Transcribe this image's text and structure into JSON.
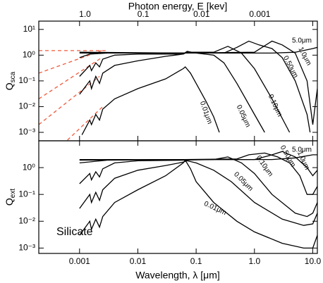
{
  "chart_data": [
    {
      "type": "line",
      "x2label": "Photon energy, E [kev]",
      "ylabel": "Q",
      "ylabel_sub": "sca",
      "xscale": "log",
      "yscale": "log",
      "xlim": [
        0.0002,
        12
      ],
      "ylim": [
        0.00047,
        21
      ],
      "x2lim": [
        6.2,
        0.000103
      ],
      "x2ticks": [
        {
          "value": 1.0,
          "label": "1.0"
        },
        0.1,
        0.01,
        0.001
      ],
      "yticks": [
        {
          "value": 0.001,
          "label": "10⁻³"
        },
        {
          "value": 0.01,
          "label": "10⁻²"
        },
        {
          "value": 0.1,
          "label": "10⁻¹"
        },
        {
          "value": 1,
          "label": "10⁰"
        },
        {
          "value": 10,
          "label": "10¹"
        }
      ],
      "series": [
        {
          "name": "0.01μm",
          "color": "#000000",
          "x": [
            0.0011,
            0.0015,
            0.0016,
            0.0019,
            0.0022,
            0.0025,
            0.004,
            0.01,
            0.03,
            0.06,
            0.065,
            0.08,
            0.1,
            0.15,
            0.2,
            0.25
          ],
          "values": [
            0.0008,
            0.003,
            0.002,
            0.005,
            0.003,
            0.008,
            0.02,
            0.05,
            0.12,
            0.3,
            0.35,
            0.2,
            0.08,
            0.015,
            0.004,
            0.001
          ]
        },
        {
          "name": "0.05μm",
          "color": "#000000",
          "x": [
            0.001,
            0.0015,
            0.0016,
            0.0019,
            0.0022,
            0.0025,
            0.004,
            0.01,
            0.03,
            0.06,
            0.07,
            0.1,
            0.2,
            0.3,
            0.5,
            1,
            1.5
          ],
          "values": [
            0.03,
            0.1,
            0.05,
            0.15,
            0.08,
            0.2,
            0.4,
            0.6,
            0.9,
            1.1,
            1.4,
            1.2,
            1.0,
            0.5,
            0.08,
            0.005,
            0.001
          ]
        },
        {
          "name": "0.10μm",
          "color": "#000000",
          "x": [
            0.001,
            0.0015,
            0.0016,
            0.0019,
            0.0022,
            0.0025,
            0.004,
            0.01,
            0.06,
            0.07,
            0.2,
            0.35,
            0.6,
            1,
            2,
            4
          ],
          "values": [
            0.15,
            0.4,
            0.25,
            0.5,
            0.35,
            0.7,
            1.0,
            1.1,
            1.1,
            1.3,
            1.3,
            2.2,
            1.2,
            0.3,
            0.02,
            0.001
          ]
        },
        {
          "name": "0.50μm",
          "color": "#000000",
          "x": [
            0.001,
            0.0015,
            0.003,
            0.06,
            0.3,
            0.5,
            0.8,
            1.2,
            2,
            3,
            5,
            8,
            9
          ],
          "values": [
            0.8,
            1.1,
            1.2,
            1.2,
            1.2,
            2,
            3.5,
            2.5,
            1.8,
            0.8,
            0.1,
            0.005,
            0.001
          ]
        },
        {
          "name": "1.0μm",
          "color": "#000000",
          "x": [
            0.001,
            0.06,
            1,
            2,
            3,
            5,
            8,
            10,
            12
          ],
          "values": [
            1.2,
            1.2,
            1.3,
            3.5,
            2.5,
            1.2,
            0.1,
            0.002,
            0.05
          ]
        },
        {
          "name": "5.0μm",
          "color": "#000000",
          "x": [
            0.001,
            0.06,
            2,
            5,
            10,
            12
          ],
          "values": [
            1.3,
            1.2,
            1.2,
            1.3,
            1.8,
            2
          ]
        }
      ],
      "dashed_color": "#f05a3c",
      "dashed_lines": [
        {
          "x": [
            0.0002,
            0.0028
          ],
          "values": [
            1.5,
            1.5
          ]
        },
        {
          "x": [
            0.0002,
            0.0024
          ],
          "values": [
            0.2,
            1.5
          ]
        },
        {
          "x": [
            0.0002,
            0.0024
          ],
          "values": [
            0.02,
            0.8
          ]
        },
        {
          "x": [
            0.0002,
            0.0022
          ],
          "values": [
            0.002,
            0.15
          ]
        },
        {
          "x": [
            0.00062,
            0.0025
          ],
          "values": [
            0.0005,
            0.01
          ]
        }
      ]
    },
    {
      "type": "line",
      "xlabel": "Wavelength, λ [μm]",
      "ylabel": "Q",
      "ylabel_sub": "ext",
      "annotation": "Silicate",
      "xscale": "log",
      "yscale": "log",
      "xlim": [
        0.0002,
        12
      ],
      "ylim": [
        0.00063,
        10
      ],
      "xticks": [
        0.001,
        0.01,
        0.1,
        {
          "value": 1.0,
          "label": "1.0"
        },
        {
          "value": 10.0,
          "label": "10.0"
        }
      ],
      "yticks": [
        {
          "value": 0.001,
          "label": "10⁻³"
        },
        {
          "value": 0.01,
          "label": "10⁻²"
        },
        {
          "value": 0.1,
          "label": "10⁻¹"
        },
        {
          "value": 1,
          "label": "10⁰"
        }
      ],
      "series": [
        {
          "name": "0.01μm",
          "color": "#000000",
          "x": [
            0.001,
            0.0015,
            0.0016,
            0.0019,
            0.0022,
            0.0025,
            0.004,
            0.01,
            0.03,
            0.06,
            0.065,
            0.08,
            0.1,
            0.2,
            0.5,
            1,
            3,
            7,
            10,
            12
          ],
          "values": [
            0.003,
            0.01,
            0.005,
            0.012,
            0.006,
            0.015,
            0.05,
            0.15,
            0.5,
            1.5,
            1.9,
            0.9,
            0.3,
            0.05,
            0.01,
            0.004,
            0.0015,
            0.001,
            0.001,
            0.003
          ]
        },
        {
          "name": "0.05μm",
          "color": "#000000",
          "x": [
            0.001,
            0.0015,
            0.0016,
            0.0019,
            0.0022,
            0.0025,
            0.004,
            0.01,
            0.03,
            0.06,
            0.07,
            0.1,
            0.2,
            0.4,
            1,
            3,
            7,
            10,
            12
          ],
          "values": [
            0.03,
            0.1,
            0.05,
            0.12,
            0.06,
            0.15,
            0.4,
            0.8,
            1.2,
            1.6,
            1.8,
            1.5,
            0.8,
            0.3,
            0.05,
            0.012,
            0.007,
            0.008,
            0.02
          ]
        },
        {
          "name": "0.10μm",
          "color": "#000000",
          "x": [
            0.001,
            0.0015,
            0.0016,
            0.0019,
            0.0022,
            0.0025,
            0.004,
            0.01,
            0.06,
            0.2,
            0.35,
            0.6,
            1,
            2,
            5,
            8,
            10,
            12
          ],
          "values": [
            0.25,
            0.6,
            0.35,
            0.7,
            0.45,
            0.9,
            1.5,
            1.8,
            1.9,
            2,
            2.5,
            1.5,
            0.6,
            0.1,
            0.02,
            0.015,
            0.02,
            0.05
          ]
        },
        {
          "name": "0.50μm",
          "color": "#000000",
          "x": [
            0.001,
            0.003,
            0.06,
            0.5,
            0.8,
            1.5,
            2.5,
            4,
            6,
            8,
            10,
            12
          ],
          "values": [
            1.5,
            1.9,
            2,
            2.1,
            3,
            3.5,
            2.5,
            1.5,
            0.5,
            0.1,
            0.1,
            0.2
          ]
        },
        {
          "name": "1.0μm",
          "color": "#000000",
          "x": [
            0.001,
            0.06,
            1,
            2,
            3,
            5,
            8,
            10,
            12
          ],
          "values": [
            1.9,
            2,
            2,
            3,
            4,
            2.5,
            1,
            0.5,
            0.8
          ]
        },
        {
          "name": "5.0μm",
          "color": "#000000",
          "x": [
            0.001,
            0.06,
            2,
            5,
            10,
            12
          ],
          "values": [
            2,
            2,
            2,
            2.3,
            3,
            3
          ]
        }
      ]
    }
  ]
}
